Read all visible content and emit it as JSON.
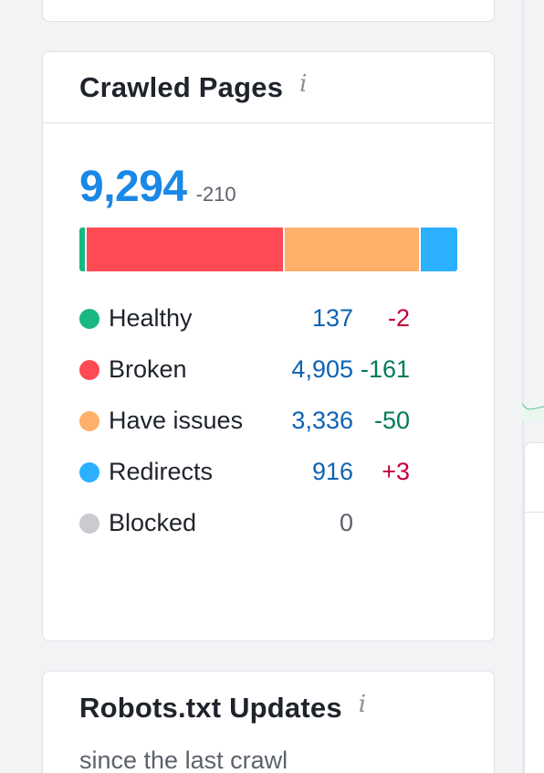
{
  "crawled": {
    "title": "Crawled Pages",
    "info_glyph": "i",
    "total": "9,294",
    "total_delta": "-210",
    "bar": [
      {
        "name": "Healthy",
        "value": 137,
        "color": "#19b784"
      },
      {
        "name": "Broken",
        "value": 4905,
        "color": "#ff4953"
      },
      {
        "name": "Have issues",
        "value": 3336,
        "color": "#ffb06b"
      },
      {
        "name": "Redirects",
        "value": 916,
        "color": "#2bb0ff"
      }
    ],
    "legend": [
      {
        "label": "Healthy",
        "value": "137",
        "delta": "-2",
        "delta_color": "neg-red",
        "dot": "#19b784"
      },
      {
        "label": "Broken",
        "value": "4,905",
        "delta": "-161",
        "delta_color": "neg-green",
        "dot": "#ff4953"
      },
      {
        "label": "Have issues",
        "value": "3,336",
        "delta": "-50",
        "delta_color": "neg-green",
        "dot": "#ffb06b"
      },
      {
        "label": "Redirects",
        "value": "916",
        "delta": "+3",
        "delta_color": "pos-red",
        "dot": "#2bb0ff"
      },
      {
        "label": "Blocked",
        "value": "0",
        "delta": "",
        "delta_color": "",
        "dot": "#c9cbd1"
      }
    ]
  },
  "robots": {
    "title": "Robots.txt Updates",
    "info_glyph": "i",
    "subtitle": "since the last crawl"
  }
}
